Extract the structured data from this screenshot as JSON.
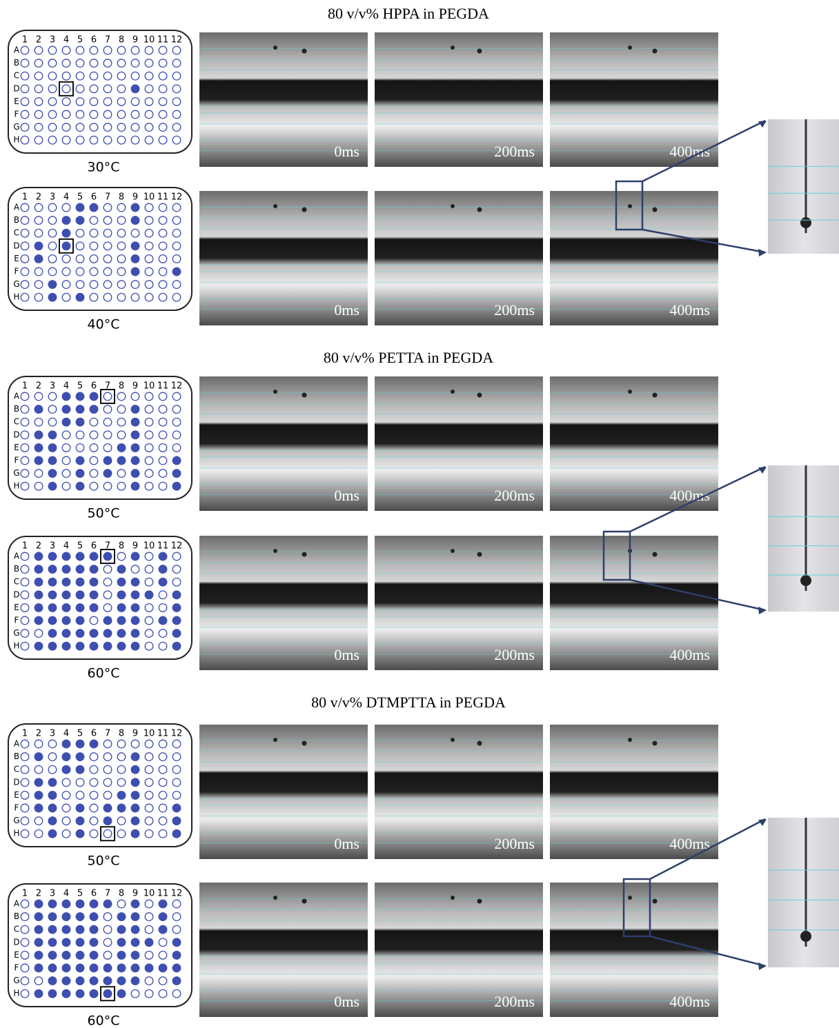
{
  "sections": [
    {
      "title": "80 v/v% HPPA in PEGDA",
      "rows": [
        {
          "temperature": "30°C"
        },
        {
          "temperature": "40°C"
        }
      ]
    },
    {
      "title": "80 v/v% PETTA in PEGDA",
      "rows": [
        {
          "temperature": "50°C"
        },
        {
          "temperature": "60°C"
        }
      ]
    },
    {
      "title": "80 v/v% DTMPTTA in PEGDA",
      "rows": [
        {
          "temperature": "50°C"
        },
        {
          "temperature": "60°C"
        }
      ]
    }
  ],
  "plate": {
    "columns": [
      "1",
      "2",
      "3",
      "4",
      "5",
      "6",
      "7",
      "8",
      "9",
      "10",
      "11",
      "12"
    ],
    "rows": [
      "A",
      "B",
      "C",
      "D",
      "E",
      "F",
      "G",
      "H"
    ]
  },
  "times": [
    "0ms",
    "200ms",
    "400ms"
  ]
}
